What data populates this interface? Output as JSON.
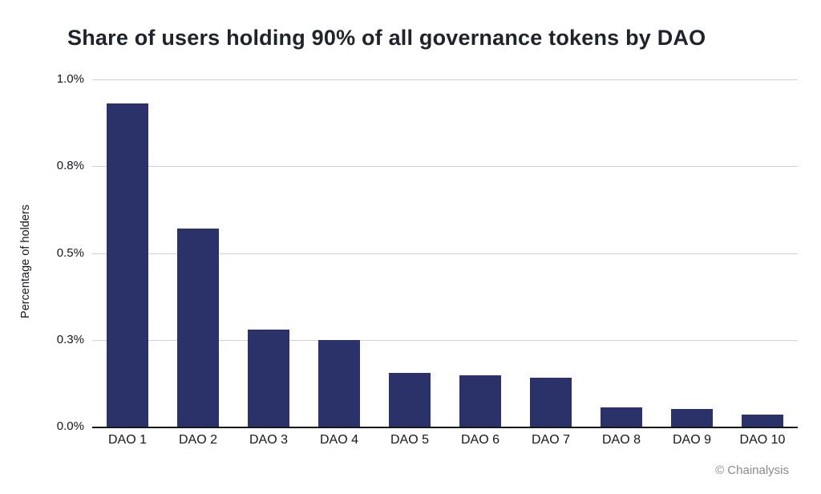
{
  "chart_data": {
    "type": "bar",
    "title": "Share of users holding 90% of all governance tokens by DAO",
    "xlabel": "",
    "ylabel": "Percentage of holders",
    "categories": [
      "DAO 1",
      "DAO 2",
      "DAO 3",
      "DAO 4",
      "DAO 5",
      "DAO 6",
      "DAO 7",
      "DAO 8",
      "DAO 9",
      "DAO 10"
    ],
    "values": [
      0.93,
      0.57,
      0.28,
      0.25,
      0.155,
      0.148,
      0.14,
      0.055,
      0.05,
      0.035
    ],
    "ylim": [
      0,
      1.0
    ],
    "ytick_values": [
      0,
      0.25,
      0.5,
      0.75,
      1.0
    ],
    "ytick_labels": [
      "0.0%",
      "0.3%",
      "0.5%",
      "0.8%",
      "1.0%"
    ],
    "grid": true,
    "legend": "none",
    "bar_color": "#2b3169",
    "axis_color": "#16161d",
    "gridline_color": "#d2d2d4"
  },
  "footer": {
    "attribution": "© Chainalysis"
  }
}
